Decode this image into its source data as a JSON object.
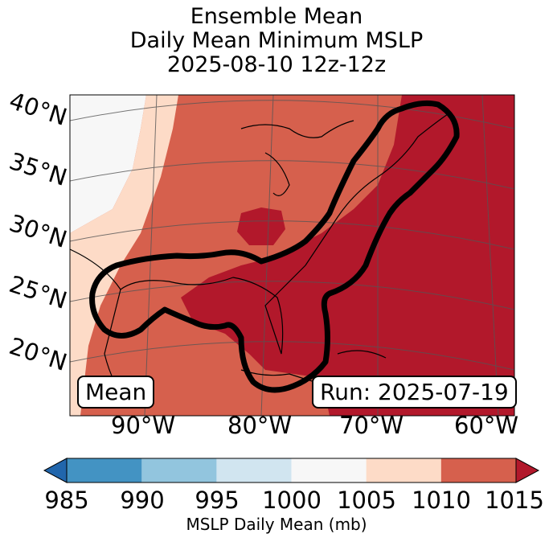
{
  "title": {
    "line1": "Ensemble Mean",
    "line2": "Daily Mean Minimum MSLP",
    "line3": "2025-08-10 12z-12z"
  },
  "map": {
    "lat_labels": [
      "40°N",
      "35°N",
      "30°N",
      "25°N",
      "20°N"
    ],
    "lon_labels": [
      "90°W",
      "80°W",
      "70°W",
      "60°W"
    ],
    "mean_label": "Mean",
    "run_label": "Run: 2025-07-19",
    "colors": {
      "very_light": "#f7f7f7",
      "light_peach": "#fddbc7",
      "medium_red": "#d6604d",
      "dark_red": "#b2182b",
      "contour": "#000000",
      "grid": "#555555"
    }
  },
  "colorbar": {
    "label": "MSLP Daily Mean (mb)",
    "ticks": [
      "985",
      "990",
      "995",
      "1000",
      "1005",
      "1010",
      "1015"
    ],
    "colors": [
      "#4393c3",
      "#92c5de",
      "#d1e5f0",
      "#f7f7f7",
      "#fddbc7",
      "#d6604d"
    ],
    "under_color": "#2166ac",
    "over_color": "#b2182b"
  }
}
